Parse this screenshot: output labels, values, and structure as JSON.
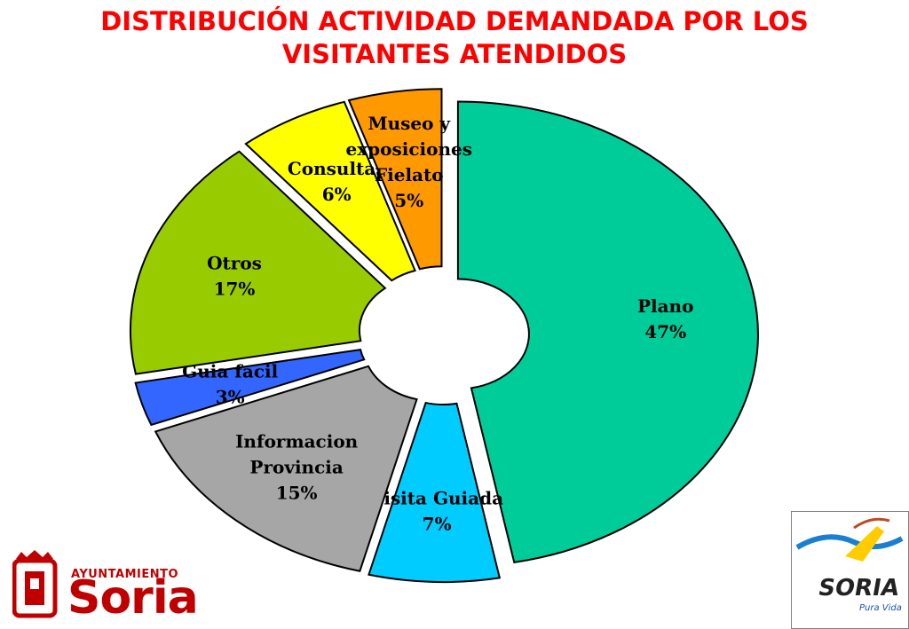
{
  "title_lines": [
    "DISTRIBUCIÓN ACTIVIDAD DEMANDADA POR LOS",
    "VISITANTES ATENDIDOS"
  ],
  "chart_data": {
    "type": "pie",
    "style": "exploded doughnut",
    "categories": [
      "Plano",
      "Visita Guiada",
      "Informacion Provincia",
      "Guia facil",
      "Otros",
      "Consultas",
      "Museo y exposiciones Fielato"
    ],
    "values": [
      47,
      7,
      15,
      3,
      17,
      6,
      5
    ],
    "labels": [
      [
        "Plano",
        "47%"
      ],
      [
        "Visita Guiada",
        "7%"
      ],
      [
        "Informacion",
        "Provincia",
        "15%"
      ],
      [
        "Guia facil",
        "3%"
      ],
      [
        "Otros",
        "17%"
      ],
      [
        "Consultas",
        "6%"
      ],
      [
        "Museo y",
        "exposiciones",
        "Fielato",
        "5%"
      ]
    ],
    "colors": [
      "#00cc99",
      "#00ccff",
      "#a6a6a6",
      "#3366ff",
      "#99cc00",
      "#ffff00",
      "#ff9900"
    ]
  },
  "logos": {
    "left_top": "AYUNTAMIENTO",
    "left_main": "Soria",
    "right_main": "SORIA",
    "right_sub": "Pura Vida"
  }
}
